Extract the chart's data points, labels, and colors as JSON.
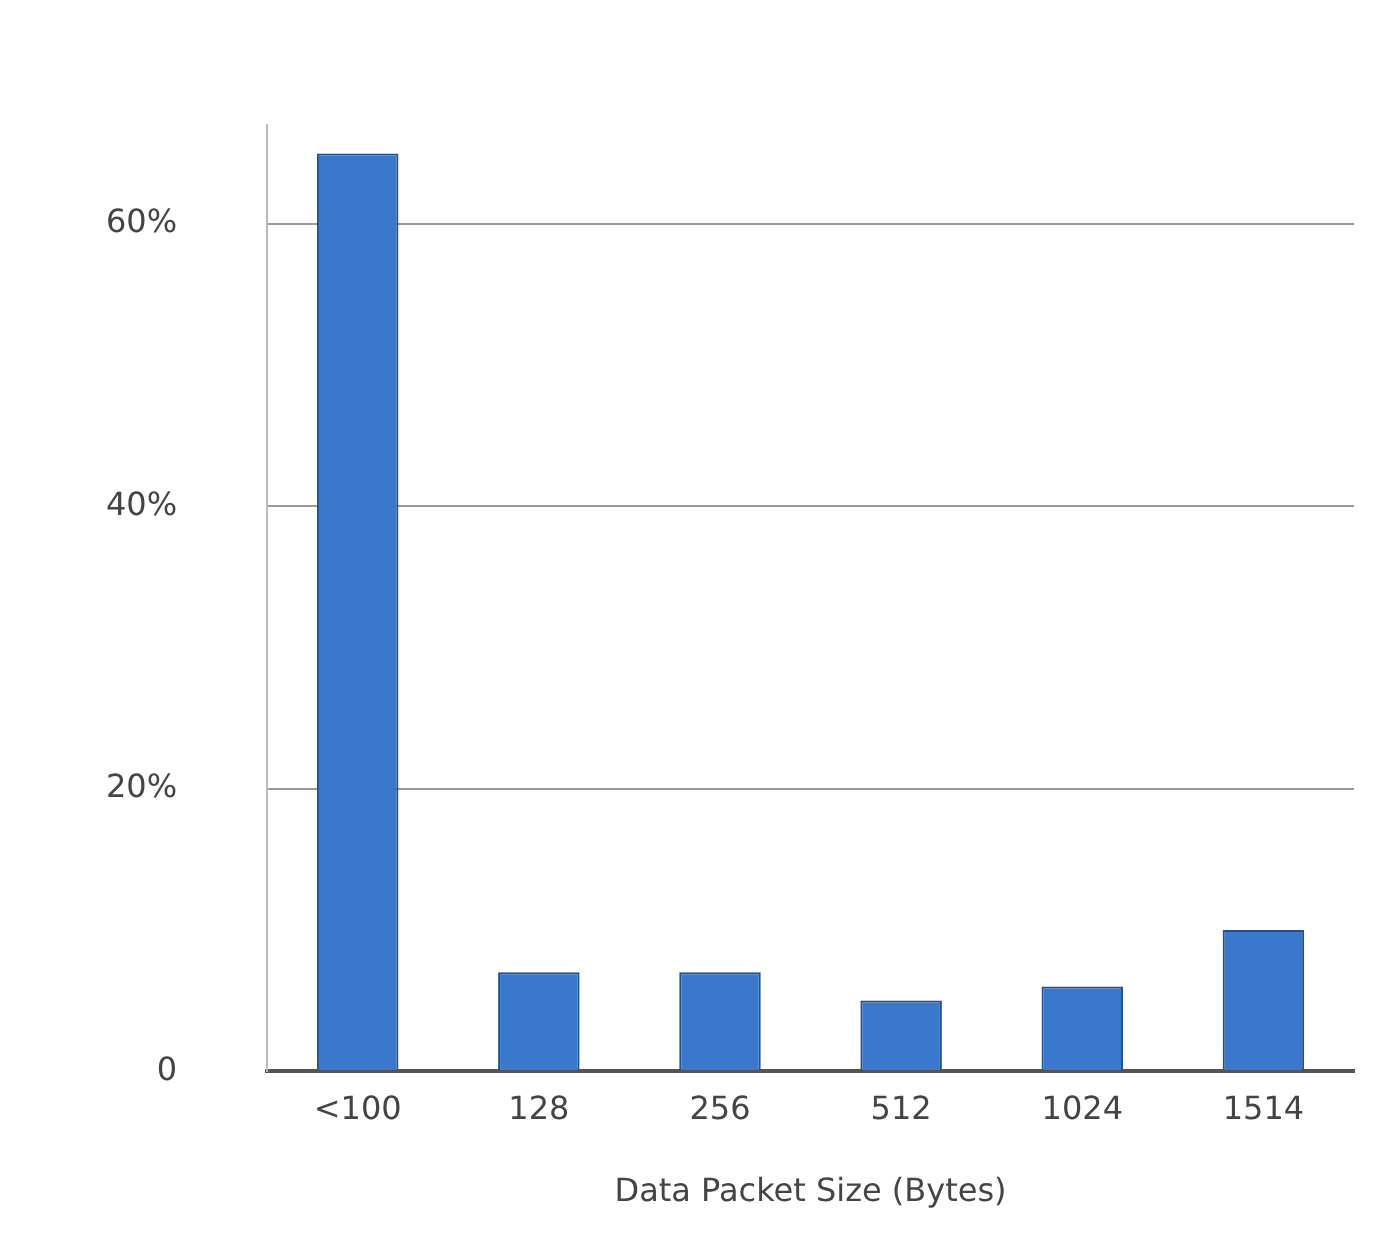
{
  "chart_data": {
    "type": "bar",
    "xlabel": "Data Packet Size (Bytes)",
    "categories": [
      "<100",
      "128",
      "256",
      "512",
      "1024",
      "1514"
    ],
    "values": [
      65,
      7,
      7,
      5,
      6,
      10
    ],
    "color": "#3a78cc",
    "ylim": [
      0,
      67
    ],
    "yticks": [
      {
        "value": 0,
        "label": "0"
      },
      {
        "value": 20,
        "label": "20%"
      },
      {
        "value": 40,
        "label": "40%"
      },
      {
        "value": 60,
        "label": "60%"
      }
    ],
    "grid": "y",
    "legend": false
  }
}
